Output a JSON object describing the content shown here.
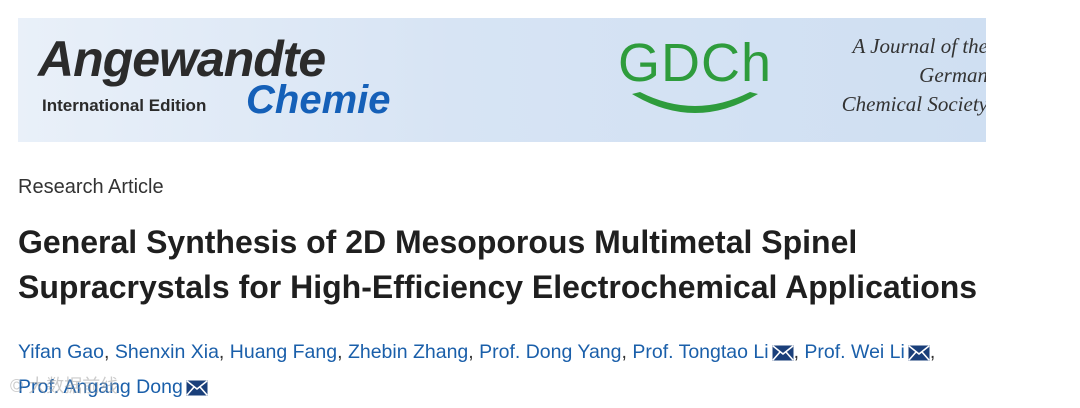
{
  "banner": {
    "journal_name": "Angewandte",
    "edition": "International Edition",
    "subtitle": "Chemie",
    "society_logo": "GDCh",
    "tagline": [
      "A Journal of the",
      "German",
      "Chemical Society"
    ],
    "colors": {
      "chemie_blue": "#1560b8",
      "gdch_green": "#2e9c3c",
      "banner_bg": "#d7e4f4"
    }
  },
  "article": {
    "type": "Research Article",
    "title_lines": [
      "General Synthesis of 2D Mesoporous Multimetal Spinel",
      "Supracrystals for High-Efficiency Electrochemical Applications"
    ]
  },
  "authors": [
    {
      "name": "Yifan Gao",
      "corresponding": false
    },
    {
      "name": "Shenxin Xia",
      "corresponding": false
    },
    {
      "name": "Huang Fang",
      "corresponding": false
    },
    {
      "name": "Zhebin Zhang",
      "corresponding": false
    },
    {
      "name": "Prof. Dong Yang",
      "corresponding": false
    },
    {
      "name": "Prof. Tongtao Li",
      "corresponding": true
    },
    {
      "name": "Prof. Wei Li",
      "corresponding": true
    },
    {
      "name": "Prof. Angang Dong",
      "corresponding": true
    }
  ],
  "icons": {
    "mail": "mail-icon"
  },
  "watermark": "© 大数据前线"
}
